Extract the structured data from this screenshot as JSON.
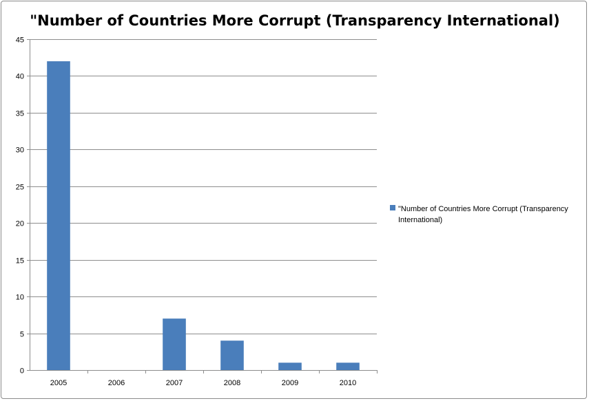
{
  "chart_data": {
    "type": "bar",
    "title": "\"Number of Countries More Corrupt (Transparency International)",
    "categories": [
      "2005",
      "2006",
      "2007",
      "2008",
      "2009",
      "2010"
    ],
    "series": [
      {
        "name": "\"Number of Countries More Corrupt (Transparency International)",
        "values": [
          42,
          0,
          7,
          4,
          1,
          1
        ],
        "color": "#4a7ebb"
      }
    ],
    "ylim": [
      0,
      45
    ],
    "yticks": [
      0,
      5,
      10,
      15,
      20,
      25,
      30,
      35,
      40,
      45
    ],
    "grid": true,
    "legend_position": "right",
    "legend_lines": [
      "\"Number of Countries More Corrupt (Transparency",
      "International)"
    ]
  }
}
